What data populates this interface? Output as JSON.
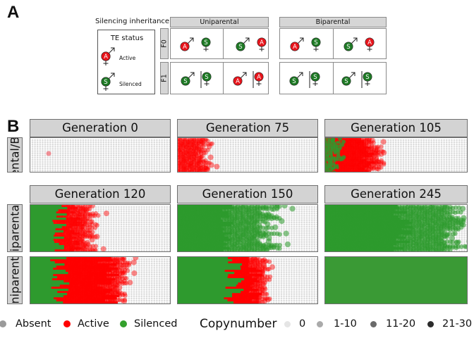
{
  "panel_a": {
    "letter": "A",
    "inheritance_label": "Silencing inheritance:",
    "columns": [
      "Uniparental",
      "Biparental"
    ],
    "rows": [
      "F0",
      "F1"
    ],
    "te_status": {
      "title": "TE status",
      "active": "Active",
      "silenced": "Silenced",
      "active_letter": "A",
      "silenced_letter": "S"
    },
    "male_symbol": "♂",
    "female_symbol": "♀"
  },
  "panel_b": {
    "letter": "B",
    "row_labels": [
      "ental/Bi",
      "iparenta",
      "niparent"
    ],
    "generations": [
      "Generation 0",
      "Generation 75",
      "Generation 105",
      "Generation 120",
      "Generation 150",
      "Generation 245"
    ]
  },
  "legend": {
    "states": [
      {
        "label": "Absent",
        "color": "#9a9a9a"
      },
      {
        "label": "Active",
        "color": "#ff0000"
      },
      {
        "label": "Silenced",
        "color": "#33a02c"
      }
    ],
    "copynumber_title": "Copynumber",
    "copynumber": [
      {
        "label": "0",
        "color": "#e5e5e5"
      },
      {
        "label": "1-10",
        "color": "#aaaaaa"
      },
      {
        "label": "11-20",
        "color": "#6a6a6a"
      },
      {
        "label": "21-30",
        "color": "#2b2b2b"
      }
    ]
  },
  "colors": {
    "active": "#e8141b",
    "silenced": "#1e7a25",
    "active_plot": "#ff0000",
    "silenced_plot": "#2f9a2f",
    "strip": "#d3d3d3"
  }
}
